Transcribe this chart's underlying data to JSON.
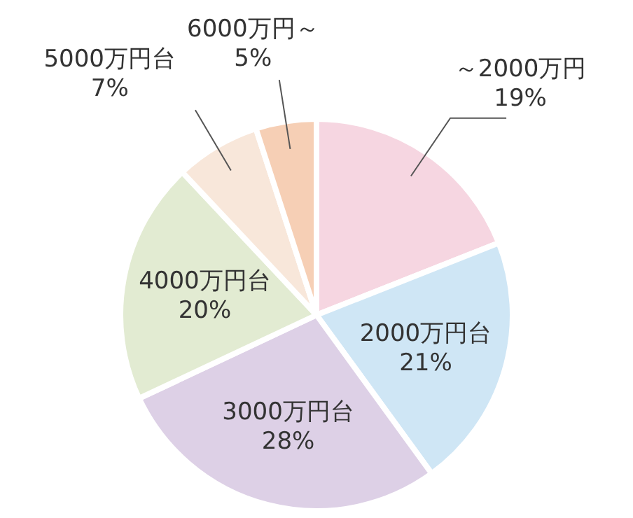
{
  "chart_data": {
    "type": "pie",
    "categories": [
      "～2000万円",
      "2000万円台",
      "3000万円台",
      "4000万円台",
      "5000万円台",
      "6000万円～"
    ],
    "values": [
      19,
      21,
      28,
      20,
      7,
      5
    ],
    "value_labels": [
      "19%",
      "21%",
      "28%",
      "20%",
      "7%",
      "5%"
    ],
    "colors": [
      "#f6d6e1",
      "#cfe6f5",
      "#ddd0e6",
      "#e2ebd2",
      "#f8e7da",
      "#f6cfb5"
    ],
    "legend": false
  }
}
